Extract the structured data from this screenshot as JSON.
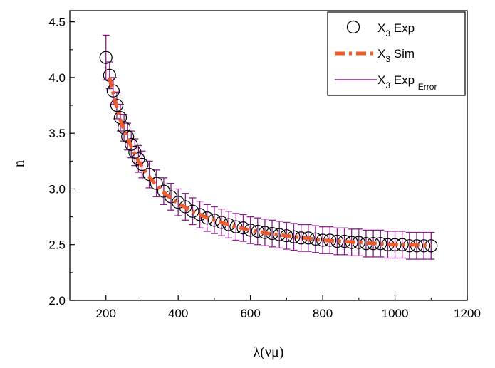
{
  "chart_data": {
    "type": "scatter",
    "xlabel": "λ(νμ)",
    "ylabel": "n",
    "xlim": [
      100,
      1200
    ],
    "ylim": [
      2.0,
      4.6
    ],
    "x_ticks": [
      200,
      400,
      600,
      800,
      1000,
      1200
    ],
    "y_ticks": [
      2.0,
      2.5,
      3.0,
      3.5,
      4.0,
      4.5
    ],
    "x_tick_labels": [
      "200",
      "400",
      "600",
      "800",
      "1000",
      "1200"
    ],
    "y_tick_labels": [
      "2.0",
      "2.5",
      "3.0",
      "3.5",
      "4.0",
      "4.5"
    ],
    "grid": false,
    "legend_position": "top-right",
    "legend": {
      "exp": {
        "main": "X",
        "sub": "3",
        "after": " Exp",
        "sub2": ""
      },
      "sim": {
        "main": "X",
        "sub": "3",
        "after": " Sim",
        "sub2": ""
      },
      "err": {
        "main": "X",
        "sub": "3",
        "after": " Exp ",
        "sub2": "Error"
      }
    },
    "colors": {
      "exp": "#000000",
      "sim": "#f05a24",
      "error": "#8b1a8b"
    },
    "series": [
      {
        "name": "X3 Exp",
        "style": "open-circle",
        "x": [
          200,
          210,
          220,
          230,
          240,
          250,
          260,
          270,
          280,
          290,
          300,
          320,
          340,
          360,
          380,
          400,
          420,
          440,
          460,
          480,
          500,
          520,
          540,
          560,
          580,
          600,
          620,
          640,
          660,
          680,
          700,
          720,
          740,
          760,
          780,
          800,
          820,
          840,
          860,
          880,
          900,
          920,
          940,
          960,
          980,
          1000,
          1020,
          1040,
          1060,
          1080,
          1100
        ],
        "y": [
          4.18,
          4.02,
          3.88,
          3.75,
          3.64,
          3.55,
          3.47,
          3.4,
          3.33,
          3.27,
          3.22,
          3.13,
          3.05,
          2.98,
          2.93,
          2.88,
          2.84,
          2.8,
          2.77,
          2.74,
          2.72,
          2.7,
          2.68,
          2.66,
          2.65,
          2.63,
          2.62,
          2.61,
          2.6,
          2.59,
          2.58,
          2.57,
          2.56,
          2.56,
          2.55,
          2.54,
          2.54,
          2.53,
          2.53,
          2.52,
          2.52,
          2.51,
          2.51,
          2.51,
          2.5,
          2.5,
          2.5,
          2.49,
          2.49,
          2.49,
          2.49
        ],
        "error": 0.12
      },
      {
        "name": "X3 Sim",
        "style": "dash-dot",
        "x": [
          210,
          220,
          230,
          240,
          250,
          270,
          290,
          310,
          330,
          350,
          370,
          400,
          440,
          480,
          520,
          560,
          600,
          650,
          700,
          750,
          800,
          850,
          900,
          950,
          1000,
          1050,
          1100
        ],
        "y": [
          4.0,
          3.86,
          3.73,
          3.62,
          3.53,
          3.38,
          3.25,
          3.15,
          3.07,
          3.0,
          2.94,
          2.87,
          2.8,
          2.74,
          2.7,
          2.66,
          2.63,
          2.6,
          2.58,
          2.56,
          2.54,
          2.53,
          2.52,
          2.51,
          2.5,
          2.5,
          2.49
        ]
      }
    ]
  }
}
